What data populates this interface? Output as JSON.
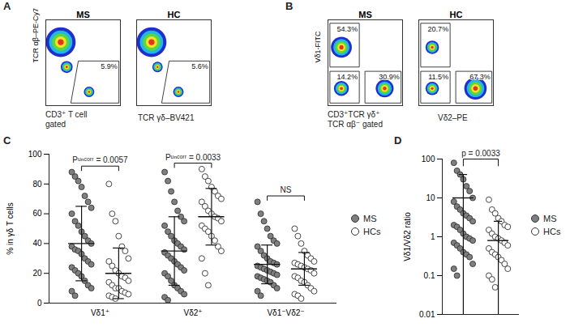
{
  "chart_data": [
    {
      "panel": "A",
      "type": "density",
      "xlabel": "TCR γδ–BV421",
      "ylabel": "TCR αβ–PE-Cy7",
      "note": [
        "CD3⁺ T cell",
        "gated"
      ],
      "xlim": [
        0,
        100
      ],
      "ylim": [
        0,
        100
      ],
      "tick_labels": false,
      "plots": [
        {
          "title": "MS",
          "populations": [
            {
              "x": 20,
              "y": 74,
              "size": 20
            },
            {
              "x": 28,
              "y": 45,
              "size": 8
            },
            {
              "x": 58,
              "y": 16,
              "size": 7
            }
          ],
          "gates": [
            {
              "x": [
                34,
                98,
                98,
                44
              ],
              "y": [
                3,
                3,
                52,
                52
              ],
              "value": 5.9,
              "label": "5.9%"
            }
          ]
        },
        {
          "title": "HC",
          "populations": [
            {
              "x": 20,
              "y": 74,
              "size": 20
            },
            {
              "x": 28,
              "y": 45,
              "size": 7
            },
            {
              "x": 56,
              "y": 16,
              "size": 7
            }
          ],
          "gates": [
            {
              "x": [
                34,
                98,
                98,
                44
              ],
              "y": [
                3,
                3,
                52,
                52
              ],
              "value": 5.6,
              "label": "5.6%"
            }
          ]
        }
      ]
    },
    {
      "panel": "B",
      "type": "density",
      "xlabel": "Vδ2–PE",
      "ylabel": "Vδ1-FITC",
      "note": [
        "CD3⁺TCR γδ⁺",
        "TCR αβ⁻ gated"
      ],
      "xlim": [
        0,
        100
      ],
      "ylim": [
        0,
        100
      ],
      "tick_labels": false,
      "plots": [
        {
          "title": "MS",
          "populations": [
            {
              "x": 18,
              "y": 68,
              "size": 14
            },
            {
              "x": 18,
              "y": 20,
              "size": 10
            },
            {
              "x": 76,
              "y": 20,
              "size": 12
            }
          ],
          "gates": [
            {
              "x": [
                3,
                42,
                42,
                3
              ],
              "y": [
                45,
                45,
                96,
                96
              ],
              "value": 54.3,
              "label": "54.3%"
            },
            {
              "x": [
                3,
                42,
                42,
                3
              ],
              "y": [
                3,
                3,
                40,
                40
              ],
              "value": 14.2,
              "label": "14.2%"
            },
            {
              "x": [
                50,
                98,
                98,
                50
              ],
              "y": [
                3,
                3,
                40,
                40
              ],
              "value": 30.9,
              "label": "30.9%"
            }
          ]
        },
        {
          "title": "HC",
          "populations": [
            {
              "x": 18,
              "y": 68,
              "size": 9
            },
            {
              "x": 18,
              "y": 20,
              "size": 9
            },
            {
              "x": 76,
              "y": 20,
              "size": 15
            }
          ],
          "gates": [
            {
              "x": [
                3,
                42,
                42,
                3
              ],
              "y": [
                45,
                45,
                96,
                96
              ],
              "value": 20.7,
              "label": "20.7%"
            },
            {
              "x": [
                3,
                42,
                42,
                3
              ],
              "y": [
                3,
                3,
                40,
                40
              ],
              "value": 11.5,
              "label": "11.5%"
            },
            {
              "x": [
                50,
                98,
                98,
                50
              ],
              "y": [
                3,
                3,
                40,
                40
              ],
              "value": 67.3,
              "label": "67.3%"
            }
          ]
        }
      ]
    },
    {
      "panel": "C",
      "type": "scatter",
      "categories": [
        "Vδ1⁺",
        "Vδ2⁺",
        "Vδ1⁻Vδ2⁻"
      ],
      "ylabel": "% in γδ T cells",
      "ylim": [
        0,
        100
      ],
      "yticks": [
        0,
        20,
        40,
        60,
        80,
        100
      ],
      "legend": "right",
      "annotations": [
        "Pᵘⁿᶜᵒʳʳ = 0.0057",
        "Pᵘⁿᶜᵒʳʳ = 0.0033",
        "NS"
      ],
      "series": [
        {
          "name": "MS",
          "color": "#7f7f7f",
          "marker": "circle",
          "values": [
            [
              88,
              85,
              82,
              78,
              72,
              68,
              64,
              60,
              55,
              52,
              48,
              45,
              42,
              40,
              38,
              36,
              35,
              33,
              30,
              28,
              26,
              24,
              22,
              20,
              18,
              15,
              12,
              10,
              8,
              5
            ],
            [
              88,
              82,
              75,
              68,
              62,
              58,
              55,
              52,
              48,
              45,
              42,
              40,
              38,
              36,
              34,
              32,
              30,
              28,
              26,
              24,
              22,
              20,
              18,
              15,
              12,
              10,
              8,
              6,
              4,
              2
            ],
            [
              68,
              60,
              55,
              50,
              45,
              42,
              40,
              38,
              35,
              32,
              30,
              28,
              27,
              26,
              25,
              24,
              23,
              22,
              21,
              20,
              19,
              18,
              17,
              16,
              15,
              14,
              12,
              10,
              8,
              5
            ]
          ],
          "mean": [
            40,
            35,
            26
          ],
          "sd": [
            25,
            23,
            13
          ]
        },
        {
          "name": "HCs",
          "color": "#ffffff",
          "marker": "circle",
          "values": [
            [
              80,
              60,
              55,
              45,
              38,
              35,
              30,
              28,
              25,
              22,
              20,
              18,
              17,
              15,
              14,
              12,
              10,
              10,
              8,
              7,
              6,
              5,
              4,
              3
            ],
            [
              90,
              85,
              82,
              78,
              75,
              72,
              70,
              68,
              65,
              62,
              60,
              58,
              57,
              55,
              52,
              50,
              48,
              45,
              42,
              38,
              35,
              30,
              20,
              12
            ],
            [
              50,
              45,
              40,
              35,
              32,
              30,
              28,
              27,
              26,
              25,
              24,
              23,
              22,
              20,
              18,
              17,
              15,
              14,
              12,
              10,
              8,
              6,
              5,
              3
            ]
          ],
          "mean": [
            20,
            58,
            23
          ],
          "sd": [
            17,
            19,
            11
          ]
        }
      ]
    },
    {
      "panel": "D",
      "type": "scatter",
      "log": "y",
      "tick_labels": "y",
      "ylabel": "Vδ1/Vδ2 ratio",
      "ylim": [
        0.01,
        100
      ],
      "yticks": [
        0.01,
        0.1,
        1,
        10,
        100
      ],
      "legend": "right",
      "annotation": "p = 0.0033",
      "series": [
        {
          "name": "MS",
          "color": "#7f7f7f",
          "marker": "circle",
          "values": [
            80,
            50,
            40,
            30,
            20,
            15,
            10,
            8,
            6,
            5,
            4,
            3.5,
            3,
            2.5,
            2,
            1.8,
            1.5,
            1.2,
            1,
            0.9,
            0.8,
            0.7,
            0.6,
            0.5,
            0.4,
            0.35,
            0.3,
            0.2,
            0.15,
            0.1
          ],
          "mean": 10,
          "sd": 30
        },
        {
          "name": "HCs",
          "color": "#ffffff",
          "marker": "circle",
          "values": [
            9,
            5,
            4,
            3,
            2.5,
            2,
            1.8,
            1.5,
            1.2,
            1,
            0.9,
            0.8,
            0.7,
            0.6,
            0.5,
            0.4,
            0.35,
            0.3,
            0.25,
            0.2,
            0.15,
            0.1,
            0.08,
            0.05
          ],
          "mean": 0.8,
          "sd": 1.7
        }
      ]
    }
  ]
}
